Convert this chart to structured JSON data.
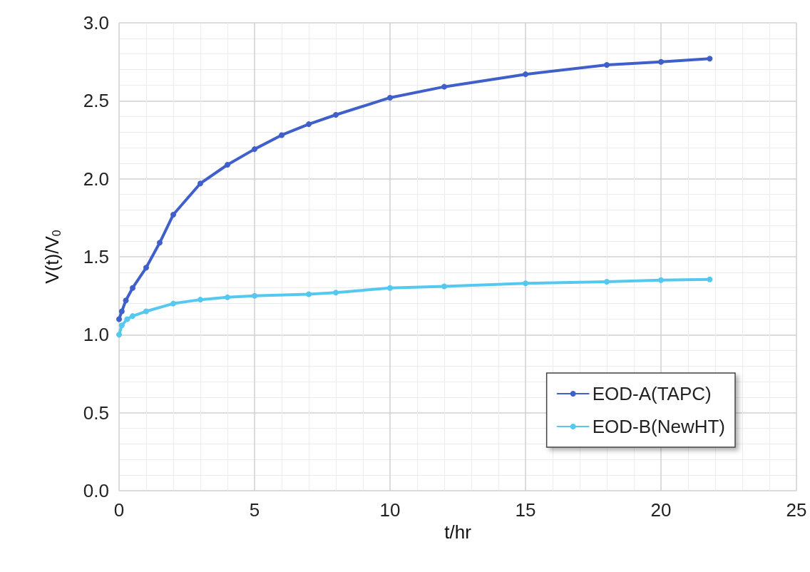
{
  "chart_data": {
    "type": "line",
    "xlabel": "t/hr",
    "ylabel": "V(t)/V$_{0}$",
    "xlim": [
      0,
      25
    ],
    "xticks": [
      0,
      5,
      10,
      15,
      20,
      25
    ],
    "ylim": [
      0,
      3
    ],
    "yticks": [
      {
        "value": 0,
        "label": "0.0"
      },
      {
        "value": 0.5,
        "label": "0.5"
      },
      {
        "value": 1,
        "label": "1.0"
      },
      {
        "value": 1.5,
        "label": "1.5"
      },
      {
        "value": 2,
        "label": "2.0"
      },
      {
        "value": 2.5,
        "label": "2.5"
      },
      {
        "value": 3,
        "label": "3.0"
      }
    ],
    "grid": true,
    "legend": "bottom right",
    "marker": "circle",
    "line_style": "solid",
    "series": [
      {
        "name": "EOD-A(TAPC)",
        "color": "#3f5fcb",
        "x": [
          0,
          0.1,
          0.25,
          0.5,
          1,
          1.5,
          2,
          3,
          4,
          5,
          6,
          7,
          8,
          10,
          12,
          15,
          18,
          20,
          21.8
        ],
        "values": [
          1.1,
          1.15,
          1.22,
          1.3,
          1.43,
          1.59,
          1.77,
          1.97,
          2.09,
          2.19,
          2.28,
          2.35,
          2.41,
          2.52,
          2.59,
          2.67,
          2.73,
          2.75,
          2.77
        ]
      },
      {
        "name": "EOD-B(NewHT)",
        "color": "#55c8f0",
        "x": [
          0,
          0.1,
          0.3,
          0.5,
          1,
          2,
          3,
          4,
          5,
          7,
          8,
          10,
          12,
          15,
          18,
          20,
          21.8
        ],
        "values": [
          1.0,
          1.06,
          1.1,
          1.12,
          1.15,
          1.2,
          1.225,
          1.24,
          1.25,
          1.26,
          1.27,
          1.3,
          1.31,
          1.33,
          1.34,
          1.35,
          1.355
        ]
      }
    ]
  }
}
